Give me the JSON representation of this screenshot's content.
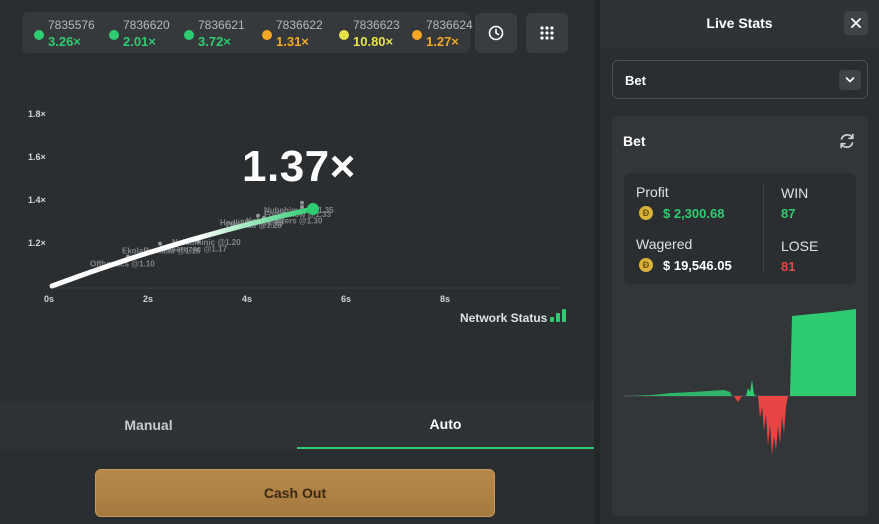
{
  "history": [
    {
      "id": "7835576",
      "mult": "3.26×",
      "color": "#2ecc71"
    },
    {
      "id": "7836620",
      "mult": "2.01×",
      "color": "#2ecc71"
    },
    {
      "id": "7836621",
      "mult": "3.72×",
      "color": "#2ecc71"
    },
    {
      "id": "7836622",
      "mult": "1.31×",
      "color": "#f5a623"
    },
    {
      "id": "7836623",
      "mult": "10.80×",
      "color": "#e6e34a"
    },
    {
      "id": "7836624",
      "mult": "1.27×",
      "color": "#f5a623"
    }
  ],
  "chart_data": {
    "type": "line",
    "x_ticks": [
      "0s",
      "2s",
      "4s",
      "6s",
      "8s"
    ],
    "y_ticks": [
      "1.2×",
      "1.4×",
      "1.6×",
      "1.8×"
    ],
    "current_multiplier": "1.37×",
    "cashouts": [
      {
        "label": "Nubehimoo @1.35",
        "y": 1.35
      },
      {
        "label": "Forbernow @1.33",
        "y": 1.33
      },
      {
        "label": "Kokomasters @1.30",
        "y": 1.3
      },
      {
        "label": "Hodli8002 @1.29",
        "y": 1.29
      },
      {
        "label": "Offbeati @1.28",
        "y": 1.28
      },
      {
        "label": "Nolaonlinic @1.20",
        "y": 1.2
      },
      {
        "label": "lovilaruzac @1.17",
        "y": 1.17
      },
      {
        "label": "EkolaBumasu @1.16",
        "y": 1.16
      },
      {
        "label": "Offbeatics @1.10",
        "y": 1.1
      }
    ]
  },
  "network_status_label": "Network Status",
  "tabs": {
    "manual": "Manual",
    "auto": "Auto"
  },
  "cashout_label": "Cash Out",
  "stats": {
    "title": "Live Stats",
    "select_value": "Bet",
    "card_title": "Bet",
    "profit_label": "Profit",
    "profit_value": "$ 2,300.68",
    "wagered_label": "Wagered",
    "wagered_value": "$ 19,546.05",
    "win_label": "WIN",
    "win_value": "87",
    "lose_label": "LOSE",
    "lose_value": "81",
    "coin_symbol": "Đ",
    "profit_color": "#2ecc71",
    "lose_color": "#e84545"
  }
}
